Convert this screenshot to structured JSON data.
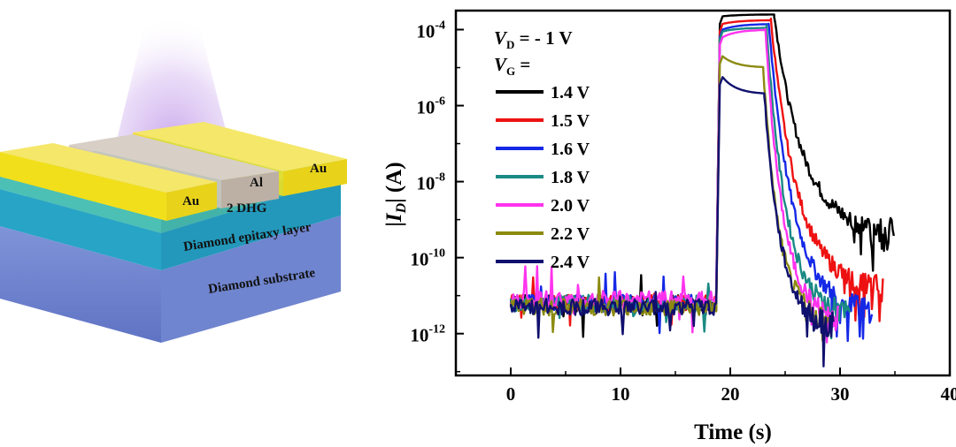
{
  "schematic": {
    "labels": {
      "au_left": "Au",
      "al": "Al",
      "au_right": "Au",
      "dhg": "2 DHG",
      "epitaxy": "Diamond epitaxy layer",
      "substrate": "Diamond substrate"
    },
    "colors": {
      "gold": "#f2df1c",
      "aluminum": "#cdc3b8",
      "dhg": "#4fc3b8",
      "epitaxy": "#2aa7c7",
      "substrate": "#6f86cf",
      "light": "#c9a8e8"
    }
  },
  "chart_data": {
    "type": "line",
    "title": "",
    "xlabel": "Time (s)",
    "ylabel": {
      "pre": "|",
      "italic": "I",
      "sub": "D",
      "post": "| (A)"
    },
    "xlim": [
      -5,
      40
    ],
    "ylim": [
      -13.1,
      -3.5
    ],
    "yscale": "log",
    "xticks": [
      "0",
      "10",
      "20",
      "30",
      "40"
    ],
    "yticks": [
      {
        "base": "10",
        "exp": "-4"
      },
      {
        "base": "10",
        "exp": "-6"
      },
      {
        "base": "10",
        "exp": "-8"
      },
      {
        "base": "10",
        "exp": "-10"
      },
      {
        "base": "10",
        "exp": "-12"
      }
    ],
    "annotation_vd": {
      "italic": "V",
      "sub": "D",
      "rest": " = - 1 V"
    },
    "annotation_vg": {
      "italic": "V",
      "sub": "G",
      "rest": " ="
    },
    "legend_position": "top-left",
    "series": [
      {
        "name": "1.4 V",
        "color": "#000000",
        "base_log": -11.2,
        "on_start": 18.8,
        "peak_start_log": -3.65,
        "peak_end_log": -3.6,
        "off_time": 24.0,
        "end_time": 35,
        "end_log": -9.3
      },
      {
        "name": "1.5 V",
        "color": "#ee1111",
        "base_log": -11.2,
        "on_start": 18.8,
        "peak_start_log": -3.85,
        "peak_end_log": -3.75,
        "off_time": 23.7,
        "end_time": 34,
        "end_log": -10.8
      },
      {
        "name": "1.6 V",
        "color": "#1428e6",
        "base_log": -11.2,
        "on_start": 18.8,
        "peak_start_log": -4.0,
        "peak_end_log": -3.85,
        "off_time": 23.5,
        "end_time": 33,
        "end_log": -11.4
      },
      {
        "name": "1.8 V",
        "color": "#1a8a84",
        "base_log": -11.2,
        "on_start": 18.8,
        "peak_start_log": -4.05,
        "peak_end_log": -3.95,
        "off_time": 23.3,
        "end_time": 31,
        "end_log": -11.5
      },
      {
        "name": "2.0 V",
        "color": "#ff33ee",
        "base_log": -11.1,
        "on_start": 18.8,
        "peak_start_log": -4.2,
        "peak_end_log": -4.0,
        "off_time": 23.2,
        "end_time": 30,
        "end_log": -11.6
      },
      {
        "name": "2.2 V",
        "color": "#8c8a10",
        "base_log": -11.3,
        "on_start": 18.8,
        "peak_start_log": -4.7,
        "peak_end_log": -5.0,
        "off_time": 23.0,
        "end_time": 29,
        "end_log": -11.6
      },
      {
        "name": "2.4 V",
        "color": "#10106e",
        "base_log": -11.3,
        "on_start": 18.8,
        "peak_start_log": -5.25,
        "peak_end_log": -5.7,
        "off_time": 23.1,
        "end_time": 29.5,
        "end_log": -11.8
      }
    ]
  }
}
